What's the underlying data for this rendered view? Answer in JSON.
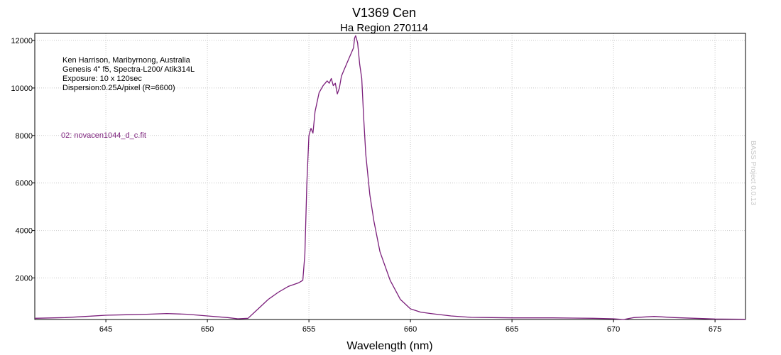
{
  "chart_data": {
    "type": "line",
    "title": "V1369 Cen",
    "subtitle": "Ha Region 270114",
    "xlabel": "Wavelength (nm)",
    "ylabel": "",
    "xlim": [
      641.5,
      676.5
    ],
    "ylim": [
      250,
      12300
    ],
    "xticks": [
      645,
      650,
      655,
      660,
      665,
      670,
      675
    ],
    "yticks": [
      2000,
      4000,
      6000,
      8000,
      10000,
      12000
    ],
    "grid": true,
    "annotations": [
      "Ken Harrison, Maribyrnong, Australia",
      "Genesis 4\" f5, Spectra-L200/ Atik314L",
      "Exposure: 10 x 120sec",
      "Dispersion:0.25A/pixel (R=6600)"
    ],
    "watermark": "BASS Project 0.0.13",
    "series": [
      {
        "name": "02: novacen1044_d_c.fit",
        "color": "#7b1f7b",
        "x": [
          641.5,
          643,
          644,
          645,
          646,
          647,
          648,
          649,
          650,
          651,
          651.5,
          652,
          652.5,
          653,
          653.5,
          654,
          654.5,
          654.7,
          654.8,
          654.9,
          655.0,
          655.1,
          655.2,
          655.3,
          655.5,
          655.7,
          655.9,
          656.0,
          656.1,
          656.2,
          656.3,
          656.4,
          656.5,
          656.6,
          656.7,
          656.8,
          657.0,
          657.1,
          657.2,
          657.25,
          657.3,
          657.4,
          657.5,
          657.6,
          657.7,
          657.8,
          658.0,
          658.2,
          658.5,
          659.0,
          659.5,
          660.0,
          660.5,
          661.0,
          662.0,
          663.0,
          664.0,
          665.0,
          666.0,
          667.0,
          668.0,
          669.0,
          670.0,
          670.5,
          671,
          672,
          673,
          674,
          675,
          676.5
        ],
        "y": [
          300,
          330,
          380,
          430,
          450,
          470,
          500,
          470,
          400,
          330,
          280,
          300,
          700,
          1100,
          1400,
          1650,
          1800,
          1900,
          3000,
          6000,
          8000,
          8300,
          8100,
          9000,
          9800,
          10100,
          10300,
          10200,
          10400,
          10100,
          10200,
          9750,
          10000,
          10500,
          10700,
          10900,
          11300,
          11500,
          11700,
          12100,
          12200,
          11900,
          11000,
          10400,
          8700,
          7200,
          5500,
          4400,
          3100,
          1900,
          1100,
          700,
          560,
          500,
          400,
          340,
          330,
          320,
          320,
          320,
          310,
          300,
          280,
          250,
          330,
          380,
          330,
          300,
          270,
          260
        ]
      }
    ]
  }
}
